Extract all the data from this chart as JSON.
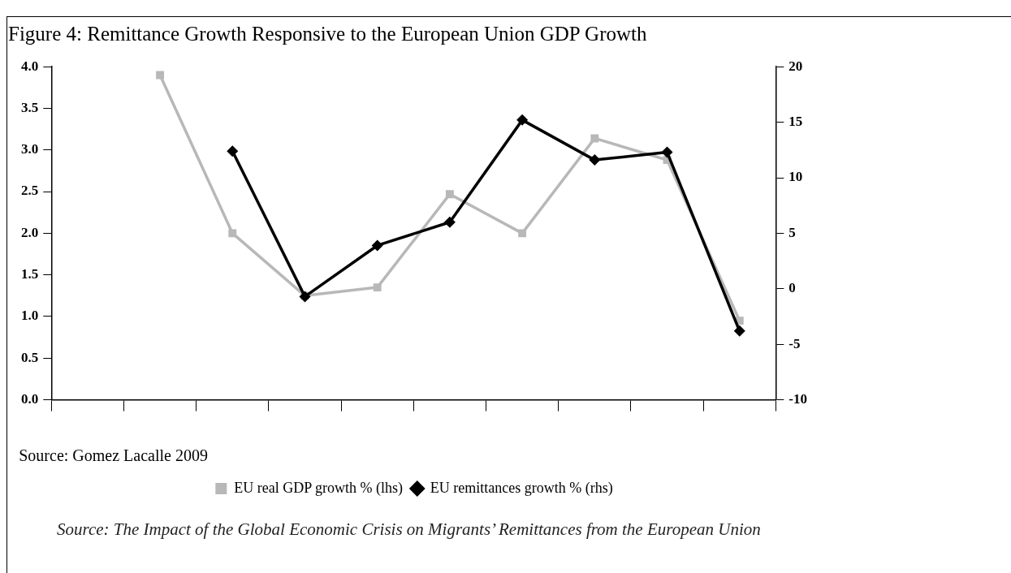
{
  "chart_data": {
    "type": "line",
    "title": "Figure 4: Remittance Growth Responsive to the European Union GDP Growth",
    "categories": [
      null,
      null,
      null,
      null,
      null,
      null,
      null,
      null,
      null,
      null
    ],
    "series": [
      {
        "name": "EU real GDP growth % (lhs)",
        "color": "#b8b8b8",
        "marker": "square",
        "values": [
          null,
          3.9,
          2.0,
          1.25,
          1.35,
          2.47,
          2.0,
          3.14,
          2.88,
          0.95
        ]
      },
      {
        "name": "EU remittances growth % (rhs)",
        "color": "#000000",
        "marker": "diamond",
        "axis": "y2",
        "values": [
          null,
          null,
          12.4,
          -0.7,
          3.9,
          6.0,
          15.2,
          11.6,
          12.3,
          -3.8
        ]
      }
    ],
    "ylim": [
      0,
      4
    ],
    "yticks": [
      {
        "value": 0,
        "label": "0.0"
      },
      {
        "value": 0.5,
        "label": "0.5"
      },
      {
        "value": 1,
        "label": "1.0"
      },
      {
        "value": 1.5,
        "label": "1.5"
      },
      {
        "value": 2,
        "label": "2.0"
      },
      {
        "value": 2.5,
        "label": "2.5"
      },
      {
        "value": 3,
        "label": "3.0"
      },
      {
        "value": 3.5,
        "label": "3.5"
      },
      {
        "value": 4,
        "label": "4.0"
      }
    ],
    "y2lim": [
      -10,
      20
    ],
    "y2ticks": [
      -10,
      -5,
      0,
      5,
      10,
      15,
      20
    ],
    "grid": false,
    "legend": "bottom",
    "line_style": "solid",
    "annotations": [
      "Source: Gomez Lacalle 2009",
      "Source: The Impact of the Global Economic Crisis on Migrants’ Remittances from the European Union"
    ]
  }
}
